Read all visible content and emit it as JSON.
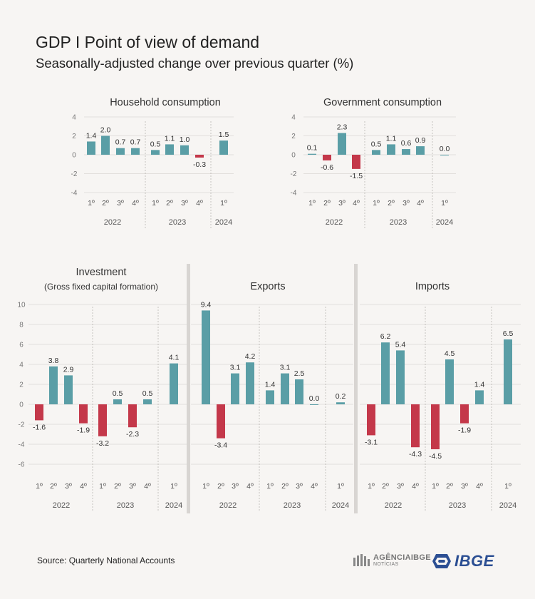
{
  "title": "GDP I Point of view of demand",
  "subtitle": "Seasonally-adjusted change over previous quarter (%)",
  "source": "Source: Quarterly National Accounts",
  "logos": {
    "agencia": "AGÊNCIAIBGE",
    "agencia_sub": "NOTÍCIAS",
    "ibge": "IBGE"
  },
  "colors": {
    "positive": "#5a9ea6",
    "negative": "#c4384a",
    "grid": "#e2dfdc",
    "separator": "#d8d5d2"
  },
  "chart_data": [
    {
      "type": "bar",
      "title": "Household consumption",
      "subtitle": "",
      "categories": [
        "1º",
        "2º",
        "3º",
        "4º",
        "1º",
        "2º",
        "3º",
        "4º",
        "1º"
      ],
      "years": [
        "2022",
        "2023",
        "2024"
      ],
      "values": [
        1.4,
        2.0,
        0.7,
        0.7,
        0.5,
        1.1,
        1.0,
        -0.3,
        1.5
      ],
      "labels": [
        "1.4",
        "2.0",
        "0.7",
        "0.7",
        "0.5",
        "1.1",
        "1.0",
        "-0.3",
        "1.5"
      ],
      "yticks": [
        "4",
        "2",
        "0",
        "-2",
        "-4"
      ],
      "ylim": [
        -4,
        4
      ],
      "grid": true
    },
    {
      "type": "bar",
      "title": "Government consumption",
      "subtitle": "",
      "categories": [
        "1º",
        "2º",
        "3º",
        "4º",
        "1º",
        "2º",
        "3º",
        "4º",
        "1º"
      ],
      "years": [
        "2022",
        "2023",
        "2024"
      ],
      "values": [
        0.1,
        -0.6,
        2.3,
        -1.5,
        0.5,
        1.1,
        0.6,
        0.9,
        0.0
      ],
      "labels": [
        "0.1",
        "-0.6",
        "2.3",
        "-1.5",
        "0.5",
        "1.1",
        "0.6",
        "0.9",
        "0.0"
      ],
      "yticks": [
        "4",
        "2",
        "0",
        "-2",
        "-4"
      ],
      "ylim": [
        -4,
        4
      ],
      "grid": true
    },
    {
      "type": "bar",
      "title": "Investment",
      "subtitle": "(Gross fixed capital formation)",
      "categories": [
        "1º",
        "2º",
        "3º",
        "4º",
        "1º",
        "2º",
        "3º",
        "4º",
        "1º"
      ],
      "years": [
        "2022",
        "2023",
        "2024"
      ],
      "values": [
        -1.6,
        3.8,
        2.9,
        -1.9,
        -3.2,
        0.5,
        -2.3,
        0.5,
        4.1
      ],
      "labels": [
        "-1.6",
        "3.8",
        "2.9",
        "-1.9",
        "-3.2",
        "0.5",
        "-2.3",
        "0.5",
        "4.1"
      ],
      "yticks": [
        "10",
        "8",
        "6",
        "4",
        "2",
        "0",
        "-2",
        "-4",
        "-6"
      ],
      "ylim": [
        -6,
        10
      ],
      "grid": true
    },
    {
      "type": "bar",
      "title": "Exports",
      "subtitle": "",
      "categories": [
        "1º",
        "2º",
        "3º",
        "4º",
        "1º",
        "2º",
        "3º",
        "4º",
        "1º"
      ],
      "years": [
        "2022",
        "2023",
        "2024"
      ],
      "values": [
        9.4,
        -3.4,
        3.1,
        4.2,
        1.4,
        3.1,
        2.5,
        0.0,
        0.2
      ],
      "labels": [
        "9.4",
        "-3.4",
        "3.1",
        "4.2",
        "1.4",
        "3.1",
        "2.5",
        "0.0",
        "0.2"
      ],
      "yticks": [],
      "ylim": [
        -6,
        10
      ],
      "grid": true
    },
    {
      "type": "bar",
      "title": "Imports",
      "subtitle": "",
      "categories": [
        "1º",
        "2º",
        "3º",
        "4º",
        "1º",
        "2º",
        "3º",
        "4º",
        "1º"
      ],
      "years": [
        "2022",
        "2023",
        "2024"
      ],
      "values": [
        -3.1,
        6.2,
        5.4,
        -4.3,
        -4.5,
        4.5,
        -1.9,
        1.4,
        6.5
      ],
      "labels": [
        "-3.1",
        "6.2",
        "5.4",
        "-4.3",
        "-4.5",
        "4.5",
        "-1.9",
        "1.4",
        "6.5"
      ],
      "yticks": [],
      "ylim": [
        -6,
        10
      ],
      "grid": true
    }
  ]
}
